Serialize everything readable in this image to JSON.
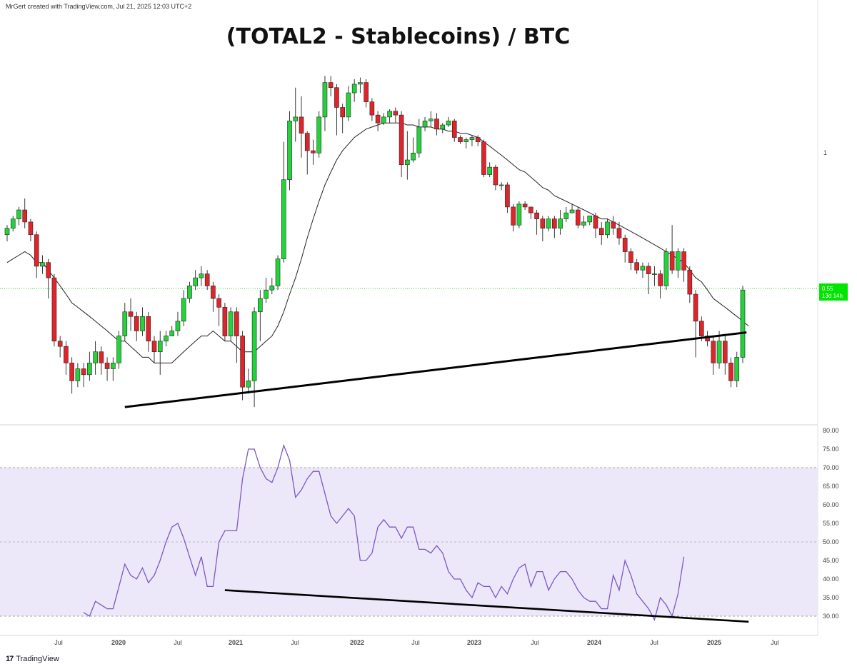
{
  "header": {
    "attribution": "MrGert created with TradingView.com, Jul 21, 2025 12:03 UTC+2",
    "title": "(TOTAL2 - Stablecoins) / BTC"
  },
  "price_label": {
    "value": "0.55",
    "countdown": "13d 14h",
    "color": "#00e600"
  },
  "price_axis_label": "1",
  "footer": {
    "logo_text": "TradingView",
    "logo_mark": "17"
  },
  "colors": {
    "up": "#22d33a",
    "down": "#e0242a",
    "ma": "#222222",
    "rsi": "#7e57c2",
    "rsi_band": "#ede7fa",
    "trendline": "#000000"
  },
  "chart_data": [
    {
      "type": "candlestick",
      "title": "(TOTAL2 - Stablecoins) / BTC",
      "interval": "2-week",
      "x_ticks": [
        "Jul",
        "2020",
        "Jul",
        "2021",
        "Jul",
        "2022",
        "Jul",
        "2023",
        "Jul",
        "2024",
        "Jul",
        "2025",
        "Jul"
      ],
      "y_ticks": [
        "1"
      ],
      "last_price": 0.55,
      "scale": "log",
      "candles": [
        [
          0.7,
          0.72,
          0.68,
          0.73
        ],
        [
          0.72,
          0.75,
          0.71,
          0.76
        ],
        [
          0.75,
          0.78,
          0.73,
          0.79
        ],
        [
          0.78,
          0.74,
          0.72,
          0.82
        ],
        [
          0.74,
          0.7,
          0.68,
          0.75
        ],
        [
          0.7,
          0.61,
          0.58,
          0.71
        ],
        [
          0.61,
          0.62,
          0.59,
          0.64
        ],
        [
          0.62,
          0.58,
          0.53,
          0.63
        ],
        [
          0.58,
          0.44,
          0.43,
          0.59
        ],
        [
          0.44,
          0.43,
          0.41,
          0.45
        ],
        [
          0.43,
          0.4,
          0.38,
          0.44
        ],
        [
          0.4,
          0.37,
          0.35,
          0.41
        ],
        [
          0.37,
          0.39,
          0.36,
          0.4
        ],
        [
          0.39,
          0.38,
          0.36,
          0.4
        ],
        [
          0.38,
          0.4,
          0.37,
          0.42
        ],
        [
          0.4,
          0.42,
          0.38,
          0.44
        ],
        [
          0.42,
          0.4,
          0.38,
          0.43
        ],
        [
          0.4,
          0.39,
          0.37,
          0.41
        ],
        [
          0.39,
          0.4,
          0.37,
          0.41
        ],
        [
          0.4,
          0.45,
          0.39,
          0.46
        ],
        [
          0.45,
          0.5,
          0.44,
          0.52
        ],
        [
          0.5,
          0.49,
          0.46,
          0.53
        ],
        [
          0.49,
          0.46,
          0.44,
          0.5
        ],
        [
          0.46,
          0.49,
          0.45,
          0.51
        ],
        [
          0.49,
          0.44,
          0.42,
          0.5
        ],
        [
          0.44,
          0.42,
          0.4,
          0.45
        ],
        [
          0.42,
          0.44,
          0.38,
          0.46
        ],
        [
          0.44,
          0.45,
          0.43,
          0.46
        ],
        [
          0.45,
          0.46,
          0.45,
          0.47
        ],
        [
          0.46,
          0.48,
          0.45,
          0.5
        ],
        [
          0.48,
          0.53,
          0.47,
          0.55
        ],
        [
          0.53,
          0.56,
          0.52,
          0.57
        ],
        [
          0.56,
          0.58,
          0.55,
          0.6
        ],
        [
          0.58,
          0.59,
          0.56,
          0.61
        ],
        [
          0.59,
          0.56,
          0.55,
          0.6
        ],
        [
          0.56,
          0.53,
          0.5,
          0.57
        ],
        [
          0.53,
          0.51,
          0.47,
          0.54
        ],
        [
          0.51,
          0.45,
          0.44,
          0.52
        ],
        [
          0.45,
          0.5,
          0.44,
          0.51
        ],
        [
          0.5,
          0.45,
          0.4,
          0.51
        ],
        [
          0.45,
          0.36,
          0.34,
          0.46
        ],
        [
          0.36,
          0.37,
          0.35,
          0.39
        ],
        [
          0.37,
          0.5,
          0.33,
          0.51
        ],
        [
          0.5,
          0.53,
          0.44,
          0.55
        ],
        [
          0.53,
          0.55,
          0.52,
          0.58
        ],
        [
          0.55,
          0.56,
          0.54,
          0.58
        ],
        [
          0.56,
          0.63,
          0.55,
          0.64
        ],
        [
          0.63,
          0.89,
          0.62,
          1.05
        ],
        [
          0.89,
          1.15,
          0.85,
          1.2
        ],
        [
          1.15,
          1.17,
          1.05,
          1.33
        ],
        [
          1.17,
          1.09,
          0.98,
          1.28
        ],
        [
          1.09,
          1.01,
          0.91,
          1.1
        ],
        [
          1.01,
          1.0,
          0.95,
          1.06
        ],
        [
          1.0,
          1.17,
          0.98,
          1.2
        ],
        [
          1.17,
          1.36,
          1.1,
          1.4
        ],
        [
          1.36,
          1.33,
          1.28,
          1.4
        ],
        [
          1.33,
          1.22,
          1.08,
          1.35
        ],
        [
          1.22,
          1.17,
          1.09,
          1.24
        ],
        [
          1.17,
          1.3,
          1.15,
          1.34
        ],
        [
          1.3,
          1.35,
          1.25,
          1.38
        ],
        [
          1.35,
          1.36,
          1.3,
          1.39
        ],
        [
          1.36,
          1.25,
          1.22,
          1.38
        ],
        [
          1.25,
          1.18,
          1.15,
          1.27
        ],
        [
          1.18,
          1.14,
          1.1,
          1.2
        ],
        [
          1.14,
          1.17,
          1.13,
          1.19
        ],
        [
          1.17,
          1.2,
          1.14,
          1.21
        ],
        [
          1.2,
          1.18,
          1.14,
          1.22
        ],
        [
          1.18,
          0.95,
          0.9,
          1.2
        ],
        [
          0.95,
          0.97,
          0.89,
          1.1
        ],
        [
          0.97,
          1.0,
          0.96,
          1.07
        ],
        [
          1.0,
          1.12,
          0.98,
          1.16
        ],
        [
          1.12,
          1.15,
          1.1,
          1.17
        ],
        [
          1.15,
          1.16,
          1.12,
          1.2
        ],
        [
          1.16,
          1.11,
          1.08,
          1.19
        ],
        [
          1.11,
          1.13,
          1.09,
          1.14
        ],
        [
          1.13,
          1.15,
          1.12,
          1.17
        ],
        [
          1.15,
          1.07,
          1.05,
          1.16
        ],
        [
          1.07,
          1.05,
          1.04,
          1.08
        ],
        [
          1.05,
          1.06,
          1.02,
          1.07
        ],
        [
          1.06,
          1.07,
          1.03,
          1.08
        ],
        [
          1.07,
          1.05,
          1.03,
          1.08
        ],
        [
          1.05,
          0.91,
          0.9,
          1.06
        ],
        [
          0.91,
          0.94,
          0.9,
          0.96
        ],
        [
          0.94,
          0.87,
          0.85,
          0.95
        ],
        [
          0.87,
          0.87,
          0.85,
          0.88
        ],
        [
          0.87,
          0.79,
          0.77,
          0.88
        ],
        [
          0.79,
          0.73,
          0.71,
          0.8
        ],
        [
          0.73,
          0.8,
          0.72,
          0.81
        ],
        [
          0.8,
          0.79,
          0.78,
          0.81
        ],
        [
          0.79,
          0.77,
          0.75,
          0.78
        ],
        [
          0.77,
          0.75,
          0.7,
          0.78
        ],
        [
          0.75,
          0.72,
          0.68,
          0.76
        ],
        [
          0.72,
          0.75,
          0.71,
          0.76
        ],
        [
          0.75,
          0.72,
          0.69,
          0.76
        ],
        [
          0.72,
          0.75,
          0.7,
          0.78
        ],
        [
          0.75,
          0.77,
          0.74,
          0.79
        ],
        [
          0.77,
          0.78,
          0.77,
          0.8
        ],
        [
          0.78,
          0.73,
          0.72,
          0.79
        ],
        [
          0.73,
          0.74,
          0.72,
          0.76
        ],
        [
          0.74,
          0.76,
          0.73,
          0.76
        ],
        [
          0.76,
          0.72,
          0.69,
          0.77
        ],
        [
          0.72,
          0.7,
          0.67,
          0.74
        ],
        [
          0.7,
          0.74,
          0.69,
          0.75
        ],
        [
          0.74,
          0.72,
          0.7,
          0.76
        ],
        [
          0.72,
          0.69,
          0.67,
          0.74
        ],
        [
          0.69,
          0.65,
          0.62,
          0.7
        ],
        [
          0.65,
          0.62,
          0.6,
          0.66
        ],
        [
          0.62,
          0.6,
          0.59,
          0.63
        ],
        [
          0.6,
          0.61,
          0.58,
          0.62
        ],
        [
          0.61,
          0.59,
          0.54,
          0.62
        ],
        [
          0.59,
          0.59,
          0.56,
          0.61
        ],
        [
          0.59,
          0.56,
          0.53,
          0.6
        ],
        [
          0.56,
          0.65,
          0.55,
          0.66
        ],
        [
          0.65,
          0.6,
          0.59,
          0.73
        ],
        [
          0.6,
          0.65,
          0.58,
          0.66
        ],
        [
          0.65,
          0.6,
          0.57,
          0.66
        ],
        [
          0.6,
          0.54,
          0.52,
          0.61
        ],
        [
          0.54,
          0.48,
          0.41,
          0.55
        ],
        [
          0.48,
          0.45,
          0.44,
          0.49
        ],
        [
          0.45,
          0.44,
          0.43,
          0.46
        ],
        [
          0.44,
          0.4,
          0.38,
          0.45
        ],
        [
          0.4,
          0.44,
          0.39,
          0.46
        ],
        [
          0.44,
          0.4,
          0.38,
          0.45
        ],
        [
          0.4,
          0.37,
          0.36,
          0.41
        ],
        [
          0.37,
          0.41,
          0.36,
          0.42
        ],
        [
          0.41,
          0.55,
          0.4,
          0.56
        ]
      ],
      "moving_average": [
        0.62,
        0.63,
        0.64,
        0.65,
        0.64,
        0.62,
        0.62,
        0.6,
        0.58,
        0.56,
        0.54,
        0.52,
        0.51,
        0.5,
        0.49,
        0.48,
        0.47,
        0.46,
        0.45,
        0.44,
        0.44,
        0.43,
        0.42,
        0.41,
        0.41,
        0.4,
        0.4,
        0.4,
        0.4,
        0.41,
        0.42,
        0.43,
        0.44,
        0.45,
        0.45,
        0.46,
        0.45,
        0.44,
        0.44,
        0.43,
        0.42,
        0.42,
        0.42,
        0.43,
        0.44,
        0.45,
        0.47,
        0.5,
        0.54,
        0.58,
        0.63,
        0.69,
        0.75,
        0.81,
        0.87,
        0.92,
        0.97,
        1.01,
        1.04,
        1.07,
        1.09,
        1.11,
        1.12,
        1.13,
        1.14,
        1.14,
        1.14,
        1.14,
        1.13,
        1.13,
        1.12,
        1.12,
        1.12,
        1.11,
        1.11,
        1.1,
        1.1,
        1.09,
        1.09,
        1.08,
        1.07,
        1.05,
        1.03,
        1.01,
        0.99,
        0.97,
        0.95,
        0.93,
        0.92,
        0.9,
        0.88,
        0.86,
        0.85,
        0.83,
        0.82,
        0.81,
        0.8,
        0.79,
        0.78,
        0.77,
        0.76,
        0.75,
        0.75,
        0.74,
        0.73,
        0.72,
        0.71,
        0.7,
        0.69,
        0.68,
        0.67,
        0.66,
        0.65,
        0.64,
        0.63,
        0.62,
        0.6,
        0.58,
        0.57,
        0.55,
        0.53,
        0.52,
        0.51,
        0.5,
        0.49,
        0.48,
        0.47
      ],
      "trendline": [
        [
          20,
          0.33
        ],
        [
          122,
          0.45
        ]
      ]
    },
    {
      "type": "line",
      "indicator": "RSI",
      "y_ticks": [
        "80.00",
        "75.00",
        "70.00",
        "65.00",
        "60.00",
        "55.00",
        "50.00",
        "45.00",
        "40.00",
        "35.00",
        "30.00"
      ],
      "ylim": [
        25,
        80
      ],
      "bands": {
        "upper": 70,
        "middle": 50,
        "lower": 30
      },
      "x_ticks": [
        "Jul",
        "2020",
        "Jul",
        "2021",
        "Jul",
        "2022",
        "Jul",
        "2023",
        "Jul",
        "2024",
        "Jul",
        "2025",
        "Jul"
      ],
      "values": [
        null,
        null,
        null,
        null,
        null,
        null,
        null,
        null,
        null,
        null,
        null,
        null,
        null,
        31,
        30,
        34,
        33,
        32,
        32,
        38,
        44,
        41,
        40,
        43,
        39,
        41,
        45,
        50,
        54,
        55,
        51,
        46,
        41,
        46,
        38,
        38,
        50,
        53,
        53,
        53,
        67,
        75,
        75,
        70,
        67,
        66,
        70,
        76,
        72,
        62,
        64,
        67,
        69,
        69,
        63,
        57,
        55,
        57,
        59,
        57,
        45,
        45,
        47,
        54,
        56,
        54,
        54,
        51,
        54,
        54,
        48,
        48,
        47,
        49,
        47,
        42,
        40,
        40,
        37,
        35,
        39,
        38,
        38,
        35,
        38,
        36,
        40,
        43,
        44,
        38,
        42,
        42,
        37,
        40,
        42,
        42,
        40,
        37,
        35,
        34,
        34,
        32,
        32,
        41,
        37,
        45,
        41,
        36,
        34,
        32,
        29,
        35,
        33,
        30,
        36,
        46
      ],
      "trendline": [
        [
          37,
          37
        ],
        [
          126,
          28.5
        ]
      ]
    }
  ]
}
